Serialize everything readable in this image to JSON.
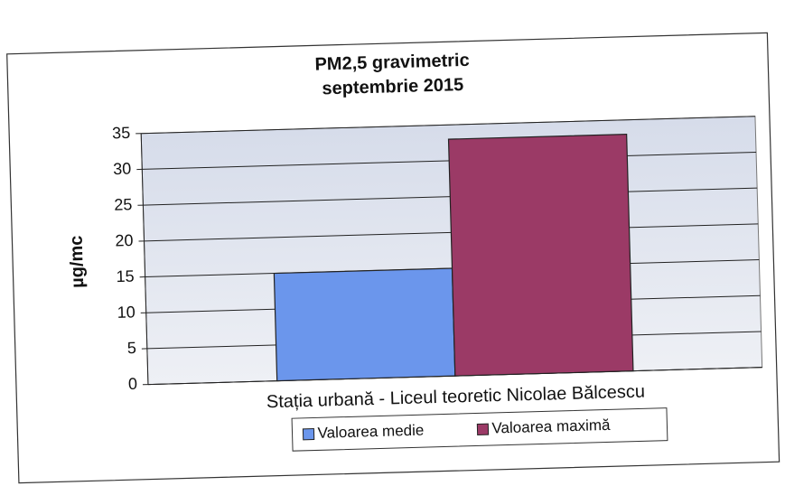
{
  "chart_data": {
    "type": "bar",
    "title": "PM2,5 gravimetric",
    "subtitle": "septembrie 2015",
    "y_label": "µg/mc",
    "categories": [
      "Stația urbană  - Liceul teoretic Nicolae Bălcescu"
    ],
    "series": [
      {
        "name": "Valoarea medie",
        "color": "#6b96ec",
        "values": [
          15
        ]
      },
      {
        "name": "Valoarea maximă",
        "color": "#9b3a66",
        "values": [
          33
        ]
      }
    ],
    "ylim": [
      0,
      35
    ],
    "yticks": [
      0,
      5,
      10,
      15,
      20,
      25,
      30,
      35
    ],
    "grid": true,
    "legend": "bottom"
  }
}
